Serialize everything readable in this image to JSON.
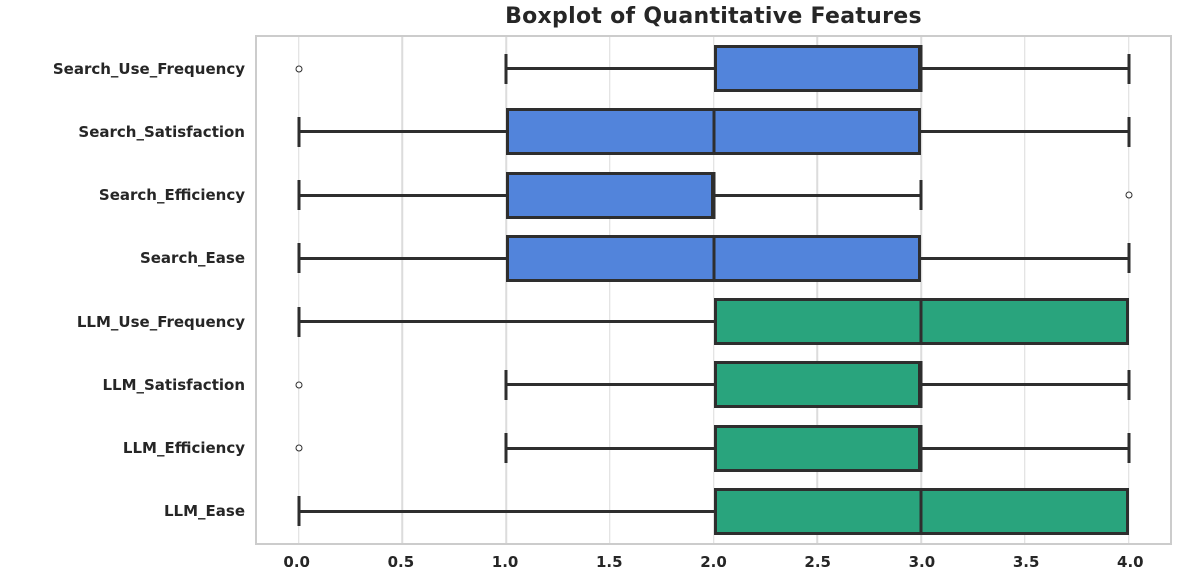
{
  "page": {
    "background": "#ffffff"
  },
  "chart_data": {
    "type": "boxplot",
    "orientation": "horizontal",
    "title": "Boxplot of Quantitative Features",
    "xlabel": "",
    "ylabel": "",
    "xlim": [
      -0.2,
      4.2
    ],
    "grid": true,
    "legend": "none",
    "xticks": [
      {
        "value": 0.0,
        "label": "0.0"
      },
      {
        "value": 0.5,
        "label": "0.5"
      },
      {
        "value": 1.0,
        "label": "1.0"
      },
      {
        "value": 1.5,
        "label": "1.5"
      },
      {
        "value": 2.0,
        "label": "2.0"
      },
      {
        "value": 2.5,
        "label": "2.5"
      },
      {
        "value": 3.0,
        "label": "3.0"
      },
      {
        "value": 3.5,
        "label": "3.5"
      },
      {
        "value": 4.0,
        "label": "4.0"
      }
    ],
    "categories": [
      "Search_Use_Frequency",
      "Search_Satisfaction",
      "Search_Efficiency",
      "Search_Ease",
      "LLM_Use_Frequency",
      "LLM_Satisfaction",
      "LLM_Efficiency",
      "LLM_Ease"
    ],
    "boxes": [
      {
        "label": "Search_Use_Frequency",
        "whisker_low": 1,
        "q1": 2,
        "median": 3,
        "q3": 3,
        "whisker_high": 4,
        "outliers": [
          0
        ],
        "color": "#5284DB"
      },
      {
        "label": "Search_Satisfaction",
        "whisker_low": 0,
        "q1": 1,
        "median": 2,
        "q3": 3,
        "whisker_high": 4,
        "outliers": [],
        "color": "#5284DB"
      },
      {
        "label": "Search_Efficiency",
        "whisker_low": 0,
        "q1": 1,
        "median": 2,
        "q3": 2,
        "whisker_high": 3,
        "outliers": [
          4
        ],
        "color": "#5284DB"
      },
      {
        "label": "Search_Ease",
        "whisker_low": 0,
        "q1": 1,
        "median": 2,
        "q3": 3,
        "whisker_high": 4,
        "outliers": [],
        "color": "#5284DB"
      },
      {
        "label": "LLM_Use_Frequency",
        "whisker_low": 0,
        "q1": 2,
        "median": 3,
        "q3": 4,
        "whisker_high": 4,
        "outliers": [],
        "color": "#29A47D"
      },
      {
        "label": "LLM_Satisfaction",
        "whisker_low": 1,
        "q1": 2,
        "median": 3,
        "q3": 3,
        "whisker_high": 4,
        "outliers": [
          0
        ],
        "color": "#29A47D"
      },
      {
        "label": "LLM_Efficiency",
        "whisker_low": 1,
        "q1": 2,
        "median": 3,
        "q3": 3,
        "whisker_high": 4,
        "outliers": [
          0
        ],
        "color": "#29A47D"
      },
      {
        "label": "LLM_Ease",
        "whisker_low": 0,
        "q1": 2,
        "median": 3,
        "q3": 4,
        "whisker_high": 4,
        "outliers": [],
        "color": "#29A47D"
      }
    ],
    "colors": {
      "search_group": "#5284DB",
      "llm_group": "#29A47D",
      "line": "#2E2E2E",
      "grid": "#DCDCDC",
      "frame": "#CCCCCC",
      "text": "#262626"
    }
  }
}
